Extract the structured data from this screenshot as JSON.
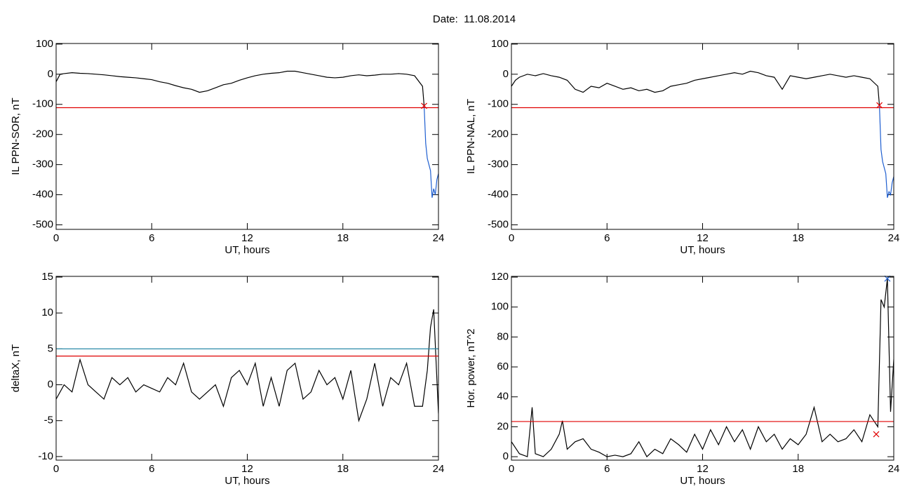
{
  "title": "Date:  11.08.2014",
  "chart_data": [
    {
      "type": "line",
      "ylabel": "IL PPN-SOR, nT",
      "xlabel": "UT, hours",
      "xlim": [
        0,
        24
      ],
      "xticks": [
        0,
        6,
        12,
        18,
        24
      ],
      "ylim": [
        -515,
        102
      ],
      "yticks": [
        -500,
        -400,
        -300,
        -200,
        -100,
        0,
        100
      ],
      "series": [
        {
          "color": "#000000",
          "x": [
            0,
            0.25,
            0.5,
            1,
            1.5,
            2,
            2.5,
            3,
            3.5,
            4,
            4.5,
            5,
            5.5,
            6,
            6.5,
            7,
            7.5,
            8,
            8.5,
            9,
            9.5,
            10,
            10.5,
            11,
            11.5,
            12,
            12.5,
            13,
            13.5,
            14,
            14.5,
            15,
            15.5,
            16,
            16.5,
            17,
            17.5,
            18,
            18.5,
            19,
            19.5,
            20,
            20.5,
            21,
            21.5,
            22,
            22.5,
            23,
            23.1
          ],
          "values": [
            -25,
            0,
            2,
            5,
            3,
            2,
            0,
            -2,
            -5,
            -8,
            -10,
            -12,
            -15,
            -18,
            -25,
            -30,
            -38,
            -45,
            -50,
            -60,
            -55,
            -45,
            -35,
            -30,
            -20,
            -12,
            -5,
            0,
            3,
            5,
            10,
            10,
            5,
            0,
            -5,
            -10,
            -12,
            -10,
            -5,
            -2,
            -5,
            -3,
            0,
            0,
            2,
            0,
            -5,
            -40,
            -105
          ]
        },
        {
          "color": "#1f5fd0",
          "x": [
            23.1,
            23.2,
            23.3,
            23.5,
            23.6,
            23.7,
            23.8,
            23.9,
            24
          ],
          "values": [
            -105,
            -230,
            -280,
            -320,
            -410,
            -380,
            -400,
            -350,
            -330
          ]
        }
      ],
      "hlines": [
        {
          "value": -111,
          "color": "#e00000"
        }
      ],
      "markers": [
        {
          "x": 23.1,
          "y": -105,
          "color": "#e00000",
          "symbol": "x"
        }
      ]
    },
    {
      "type": "line",
      "ylabel": "IL PPN-NAL, nT",
      "xlabel": "UT, hours",
      "xlim": [
        0,
        24
      ],
      "xticks": [
        0,
        6,
        12,
        18,
        24
      ],
      "ylim": [
        -515,
        102
      ],
      "yticks": [
        -500,
        -400,
        -300,
        -200,
        -100,
        0,
        100
      ],
      "series": [
        {
          "color": "#000000",
          "x": [
            0,
            0.25,
            0.5,
            1,
            1.5,
            2,
            2.5,
            3,
            3.5,
            4,
            4.5,
            5,
            5.5,
            6,
            6.5,
            7,
            7.5,
            8,
            8.5,
            9,
            9.5,
            10,
            10.5,
            11,
            11.5,
            12,
            12.5,
            13,
            13.5,
            14,
            14.5,
            15,
            15.5,
            16,
            16.5,
            17,
            17.5,
            18,
            18.5,
            19,
            19.5,
            20,
            20.5,
            21,
            21.5,
            22,
            22.5,
            23,
            23.1
          ],
          "values": [
            -40,
            -20,
            -10,
            0,
            -5,
            2,
            -5,
            -10,
            -20,
            -50,
            -60,
            -40,
            -45,
            -30,
            -40,
            -50,
            -45,
            -55,
            -50,
            -60,
            -55,
            -40,
            -35,
            -30,
            -20,
            -15,
            -10,
            -5,
            0,
            5,
            0,
            10,
            5,
            -5,
            -10,
            -50,
            -5,
            -10,
            -15,
            -10,
            -5,
            0,
            -5,
            -10,
            -5,
            -10,
            -15,
            -40,
            -103
          ]
        },
        {
          "color": "#1f5fd0",
          "x": [
            23.1,
            23.2,
            23.3,
            23.5,
            23.6,
            23.7,
            23.8,
            23.9,
            24
          ],
          "values": [
            -103,
            -250,
            -290,
            -330,
            -410,
            -390,
            -400,
            -360,
            -340
          ]
        }
      ],
      "hlines": [
        {
          "value": -111,
          "color": "#e00000"
        }
      ],
      "markers": [
        {
          "x": 23.1,
          "y": -103,
          "color": "#e00000",
          "symbol": "x"
        }
      ]
    },
    {
      "type": "line",
      "ylabel": "deltaX, nT",
      "xlabel": "UT, hours",
      "xlim": [
        0,
        24
      ],
      "xticks": [
        0,
        6,
        12,
        18,
        24
      ],
      "ylim": [
        -10.5,
        15.1
      ],
      "yticks": [
        -10,
        -5,
        0,
        5,
        10,
        15
      ],
      "series": [
        {
          "color": "#000000",
          "x": [
            0,
            0.5,
            1,
            1.5,
            2,
            2.5,
            3,
            3.5,
            4,
            4.5,
            5,
            5.5,
            6,
            6.5,
            7,
            7.5,
            8,
            8.5,
            9,
            9.5,
            10,
            10.5,
            11,
            11.5,
            12,
            12.5,
            13,
            13.5,
            14,
            14.5,
            15,
            15.5,
            16,
            16.5,
            17,
            17.5,
            18,
            18.5,
            19,
            19.5,
            20,
            20.5,
            21,
            21.5,
            22,
            22.5,
            23,
            23.3,
            23.5,
            23.7,
            24
          ],
          "values": [
            -2,
            0,
            -1,
            3.5,
            0,
            -1,
            -2,
            1,
            0,
            1,
            -1,
            0,
            -0.5,
            -1,
            1,
            0,
            3,
            -1,
            -2,
            -1,
            0,
            -3,
            1,
            2,
            0,
            3,
            -3,
            1,
            -3,
            2,
            3,
            -2,
            -1,
            2,
            0,
            1,
            -2,
            2,
            -5,
            -2,
            3,
            -3,
            1,
            0,
            3,
            -3,
            -3,
            2,
            8,
            10.5,
            -4
          ]
        }
      ],
      "hlines": [
        {
          "value": 5.0,
          "color": "#2a8aa8"
        },
        {
          "value": 4.0,
          "color": "#e00000"
        }
      ],
      "markers": []
    },
    {
      "type": "line",
      "ylabel": "Hor. power, nT^2",
      "xlabel": "UT, hours",
      "xlim": [
        0,
        24
      ],
      "xticks": [
        0,
        6,
        12,
        18,
        24
      ],
      "ylim": [
        -2.3,
        120.5
      ],
      "yticks": [
        0,
        20,
        40,
        60,
        80,
        100,
        120
      ],
      "series": [
        {
          "color": "#000000",
          "x": [
            0,
            0.5,
            1,
            1.3,
            1.5,
            2,
            2.5,
            3,
            3.2,
            3.5,
            4,
            4.5,
            5,
            5.5,
            6,
            6.5,
            7,
            7.5,
            8,
            8.5,
            9,
            9.5,
            10,
            10.5,
            11,
            11.5,
            12,
            12.5,
            13,
            13.5,
            14,
            14.5,
            15,
            15.5,
            16,
            16.5,
            17,
            17.5,
            18,
            18.5,
            19,
            19.5,
            20,
            20.5,
            21,
            21.5,
            22,
            22.5,
            23,
            23.2,
            23.4,
            23.6,
            23.8,
            24
          ],
          "values": [
            10,
            2,
            0,
            33,
            2,
            0,
            5,
            15,
            24,
            5,
            10,
            12,
            5,
            3,
            0,
            1,
            0,
            2,
            10,
            0,
            5,
            2,
            12,
            8,
            3,
            15,
            5,
            18,
            8,
            20,
            10,
            18,
            5,
            20,
            10,
            15,
            5,
            12,
            8,
            15,
            33,
            10,
            15,
            10,
            12,
            18,
            10,
            28,
            20,
            105,
            100,
            119,
            30,
            65
          ]
        }
      ],
      "hlines": [
        {
          "value": 23.5,
          "color": "#e00000"
        }
      ],
      "markers": [
        {
          "x": 22.9,
          "y": 15,
          "color": "#e00000",
          "symbol": "x"
        },
        {
          "x": 23.6,
          "y": 119,
          "color": "#1f5fd0",
          "symbol": "x"
        }
      ]
    }
  ]
}
